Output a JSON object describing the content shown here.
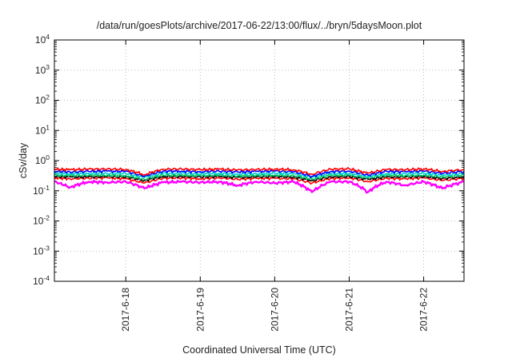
{
  "chart_data": {
    "type": "line",
    "title": "/data/run/goesPlots/archive/2017-06-22/13:00/flux/../bryn/5daysMoon.plot",
    "xlabel": "Coordinated Universal Time (UTC)",
    "ylabel": "cSv/day",
    "yscale": "log",
    "ylim": [
      0.0001,
      10000
    ],
    "y_ticks": [
      {
        "base": "10",
        "exp": "-4",
        "value": 0.0001
      },
      {
        "base": "10",
        "exp": "-3",
        "value": 0.001
      },
      {
        "base": "10",
        "exp": "-2",
        "value": 0.01
      },
      {
        "base": "10",
        "exp": "-1",
        "value": 0.1
      },
      {
        "base": "10",
        "exp": "0",
        "value": 1
      },
      {
        "base": "10",
        "exp": "1",
        "value": 10
      },
      {
        "base": "10",
        "exp": "2",
        "value": 100
      },
      {
        "base": "10",
        "exp": "3",
        "value": 1000
      },
      {
        "base": "10",
        "exp": "4",
        "value": 10000
      }
    ],
    "xlim": [
      "2017-06-17 01:00",
      "2017-06-22 13:00"
    ],
    "x_ticks": [
      "2017-6-18",
      "2017-6-19",
      "2017-6-20",
      "2017-6-21",
      "2017-6-22"
    ],
    "grid": true,
    "series": [
      {
        "color": "#ff00ff",
        "x": [
          "2017-06-17 01:00",
          "2017-06-17 06:00",
          "2017-06-17 12:00",
          "2017-06-17 18:00",
          "2017-06-18 00:00",
          "2017-06-18 06:00",
          "2017-06-18 12:00",
          "2017-06-18 18:00",
          "2017-06-19 00:00",
          "2017-06-19 06:00",
          "2017-06-19 12:00",
          "2017-06-19 18:00",
          "2017-06-20 00:00",
          "2017-06-20 06:00",
          "2017-06-20 12:00",
          "2017-06-20 18:00",
          "2017-06-21 00:00",
          "2017-06-21 06:00",
          "2017-06-21 12:00",
          "2017-06-21 18:00",
          "2017-06-22 00:00",
          "2017-06-22 06:00",
          "2017-06-22 13:00"
        ],
        "values": [
          0.2,
          0.13,
          0.2,
          0.19,
          0.2,
          0.12,
          0.19,
          0.2,
          0.19,
          0.2,
          0.15,
          0.2,
          0.18,
          0.2,
          0.09,
          0.2,
          0.2,
          0.09,
          0.2,
          0.15,
          0.2,
          0.12,
          0.2
        ]
      },
      {
        "color": "#ff0000",
        "x": [
          "2017-06-17 01:00",
          "2017-06-17 06:00",
          "2017-06-17 12:00",
          "2017-06-17 18:00",
          "2017-06-18 00:00",
          "2017-06-18 06:00",
          "2017-06-18 12:00",
          "2017-06-18 18:00",
          "2017-06-19 00:00",
          "2017-06-19 06:00",
          "2017-06-19 12:00",
          "2017-06-19 18:00",
          "2017-06-20 00:00",
          "2017-06-20 06:00",
          "2017-06-20 12:00",
          "2017-06-20 18:00",
          "2017-06-21 00:00",
          "2017-06-21 06:00",
          "2017-06-21 12:00",
          "2017-06-21 18:00",
          "2017-06-22 00:00",
          "2017-06-22 06:00",
          "2017-06-22 13:00"
        ],
        "values": [
          0.27,
          0.25,
          0.26,
          0.27,
          0.25,
          0.18,
          0.26,
          0.27,
          0.25,
          0.27,
          0.24,
          0.26,
          0.26,
          0.25,
          0.18,
          0.26,
          0.27,
          0.2,
          0.26,
          0.25,
          0.27,
          0.22,
          0.26
        ]
      },
      {
        "color": "#000000",
        "x": [
          "2017-06-17 01:00",
          "2017-06-17 06:00",
          "2017-06-17 12:00",
          "2017-06-17 18:00",
          "2017-06-18 00:00",
          "2017-06-18 06:00",
          "2017-06-18 12:00",
          "2017-06-18 18:00",
          "2017-06-19 00:00",
          "2017-06-19 06:00",
          "2017-06-19 12:00",
          "2017-06-19 18:00",
          "2017-06-20 00:00",
          "2017-06-20 06:00",
          "2017-06-20 12:00",
          "2017-06-20 18:00",
          "2017-06-21 00:00",
          "2017-06-21 06:00",
          "2017-06-21 12:00",
          "2017-06-21 18:00",
          "2017-06-22 00:00",
          "2017-06-22 06:00",
          "2017-06-22 13:00"
        ],
        "values": [
          0.3,
          0.29,
          0.29,
          0.3,
          0.29,
          0.22,
          0.3,
          0.3,
          0.29,
          0.3,
          0.28,
          0.29,
          0.3,
          0.29,
          0.22,
          0.29,
          0.3,
          0.24,
          0.29,
          0.29,
          0.3,
          0.26,
          0.29
        ]
      },
      {
        "color": "#00cc66",
        "x": [
          "2017-06-17 01:00",
          "2017-06-17 06:00",
          "2017-06-17 12:00",
          "2017-06-17 18:00",
          "2017-06-18 00:00",
          "2017-06-18 06:00",
          "2017-06-18 12:00",
          "2017-06-18 18:00",
          "2017-06-19 00:00",
          "2017-06-19 06:00",
          "2017-06-19 12:00",
          "2017-06-19 18:00",
          "2017-06-20 00:00",
          "2017-06-20 06:00",
          "2017-06-20 12:00",
          "2017-06-20 18:00",
          "2017-06-21 00:00",
          "2017-06-21 06:00",
          "2017-06-21 12:00",
          "2017-06-21 18:00",
          "2017-06-22 00:00",
          "2017-06-22 06:00",
          "2017-06-22 13:00"
        ],
        "values": [
          0.33,
          0.32,
          0.33,
          0.33,
          0.32,
          0.24,
          0.33,
          0.33,
          0.32,
          0.33,
          0.31,
          0.33,
          0.33,
          0.32,
          0.24,
          0.33,
          0.33,
          0.27,
          0.33,
          0.32,
          0.33,
          0.29,
          0.33
        ]
      },
      {
        "color": "#00cccc",
        "x": [
          "2017-06-17 01:00",
          "2017-06-17 06:00",
          "2017-06-17 12:00",
          "2017-06-17 18:00",
          "2017-06-18 00:00",
          "2017-06-18 06:00",
          "2017-06-18 12:00",
          "2017-06-18 18:00",
          "2017-06-19 00:00",
          "2017-06-19 06:00",
          "2017-06-19 12:00",
          "2017-06-19 18:00",
          "2017-06-20 00:00",
          "2017-06-20 06:00",
          "2017-06-20 12:00",
          "2017-06-20 18:00",
          "2017-06-21 00:00",
          "2017-06-21 06:00",
          "2017-06-21 12:00",
          "2017-06-21 18:00",
          "2017-06-22 00:00",
          "2017-06-22 06:00",
          "2017-06-22 13:00"
        ],
        "values": [
          0.38,
          0.37,
          0.38,
          0.38,
          0.37,
          0.28,
          0.38,
          0.38,
          0.37,
          0.38,
          0.36,
          0.37,
          0.38,
          0.37,
          0.28,
          0.37,
          0.38,
          0.3,
          0.37,
          0.37,
          0.38,
          0.33,
          0.37
        ]
      },
      {
        "color": "#0000ff",
        "x": [
          "2017-06-17 01:00",
          "2017-06-17 06:00",
          "2017-06-17 12:00",
          "2017-06-17 18:00",
          "2017-06-18 00:00",
          "2017-06-18 06:00",
          "2017-06-18 12:00",
          "2017-06-18 18:00",
          "2017-06-19 00:00",
          "2017-06-19 06:00",
          "2017-06-19 12:00",
          "2017-06-19 18:00",
          "2017-06-20 00:00",
          "2017-06-20 06:00",
          "2017-06-20 12:00",
          "2017-06-20 18:00",
          "2017-06-21 00:00",
          "2017-06-21 06:00",
          "2017-06-21 12:00",
          "2017-06-21 18:00",
          "2017-06-22 00:00",
          "2017-06-22 06:00",
          "2017-06-22 13:00"
        ],
        "values": [
          0.45,
          0.42,
          0.44,
          0.45,
          0.44,
          0.3,
          0.45,
          0.45,
          0.43,
          0.45,
          0.42,
          0.44,
          0.45,
          0.43,
          0.3,
          0.44,
          0.45,
          0.33,
          0.44,
          0.43,
          0.45,
          0.38,
          0.44
        ]
      },
      {
        "color": "#ff0000",
        "x": [
          "2017-06-17 01:00",
          "2017-06-17 06:00",
          "2017-06-17 12:00",
          "2017-06-17 18:00",
          "2017-06-18 00:00",
          "2017-06-18 06:00",
          "2017-06-18 12:00",
          "2017-06-18 18:00",
          "2017-06-19 00:00",
          "2017-06-19 06:00",
          "2017-06-19 12:00",
          "2017-06-19 18:00",
          "2017-06-20 00:00",
          "2017-06-20 06:00",
          "2017-06-20 12:00",
          "2017-06-20 18:00",
          "2017-06-21 00:00",
          "2017-06-21 06:00",
          "2017-06-21 12:00",
          "2017-06-21 18:00",
          "2017-06-22 00:00",
          "2017-06-22 06:00",
          "2017-06-22 13:00"
        ],
        "values": [
          0.52,
          0.5,
          0.52,
          0.53,
          0.51,
          0.34,
          0.52,
          0.53,
          0.5,
          0.52,
          0.49,
          0.51,
          0.52,
          0.5,
          0.35,
          0.52,
          0.53,
          0.38,
          0.51,
          0.5,
          0.53,
          0.44,
          0.5
        ]
      }
    ]
  }
}
